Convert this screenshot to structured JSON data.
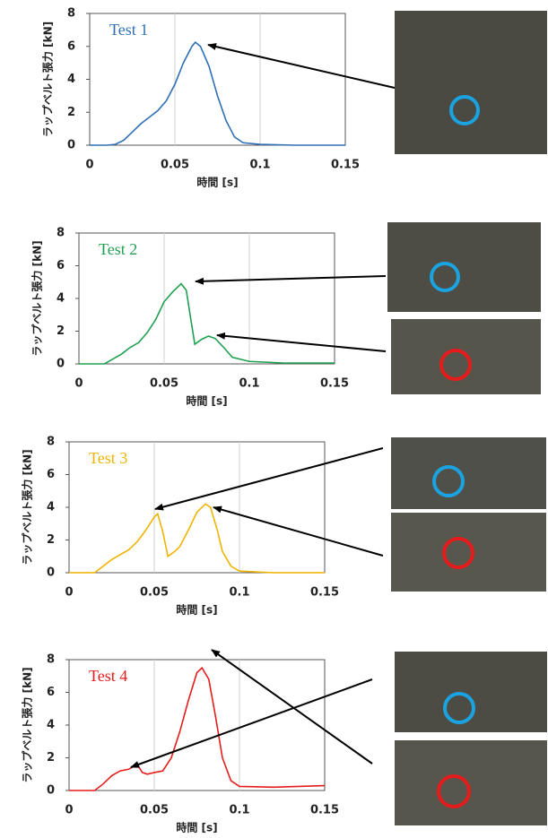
{
  "chart_data": [
    {
      "type": "line",
      "title": "Test 1",
      "xlabel": "時間 [s]",
      "ylabel": "ラップベルト張力 [kN]",
      "color": "#2f6fb5",
      "x": [
        0,
        0.01,
        0.015,
        0.02,
        0.025,
        0.03,
        0.035,
        0.04,
        0.045,
        0.05,
        0.055,
        0.06,
        0.062,
        0.065,
        0.07,
        0.075,
        0.08,
        0.085,
        0.09,
        0.1,
        0.12,
        0.15
      ],
      "values": [
        0,
        0,
        0.05,
        0.3,
        0.8,
        1.3,
        1.7,
        2.1,
        2.7,
        3.7,
        5.0,
        6.0,
        6.25,
        6.0,
        4.8,
        3.0,
        1.5,
        0.5,
        0.15,
        0.05,
        0,
        0
      ],
      "xlim": [
        0,
        0.15
      ],
      "ylim": [
        0,
        8
      ],
      "xticks": [
        0,
        0.05,
        0.1,
        0.15
      ],
      "yticks": [
        0,
        2,
        4,
        6,
        8
      ],
      "grid": true
    },
    {
      "type": "line",
      "title": "Test 2",
      "xlabel": "時間 [s]",
      "ylabel": "ラップベルト張力 [kN]",
      "color": "#1fa050",
      "x": [
        0,
        0.015,
        0.02,
        0.025,
        0.03,
        0.035,
        0.04,
        0.045,
        0.05,
        0.055,
        0.06,
        0.063,
        0.066,
        0.068,
        0.072,
        0.076,
        0.08,
        0.085,
        0.09,
        0.1,
        0.12,
        0.15
      ],
      "values": [
        0,
        0,
        0.3,
        0.6,
        1.0,
        1.3,
        1.9,
        2.7,
        3.8,
        4.4,
        4.9,
        4.5,
        2.5,
        1.2,
        1.5,
        1.7,
        1.55,
        1.0,
        0.4,
        0.15,
        0.05,
        0.05
      ],
      "xlim": [
        0,
        0.15
      ],
      "ylim": [
        0,
        8
      ],
      "xticks": [
        0,
        0.05,
        0.1,
        0.15
      ],
      "yticks": [
        0,
        2,
        4,
        6,
        8
      ],
      "grid": true
    },
    {
      "type": "line",
      "title": "Test 3",
      "xlabel": "時間 [s]",
      "ylabel": "ラップベルト張力 [kN]",
      "color": "#f0b400",
      "x": [
        0,
        0.015,
        0.02,
        0.025,
        0.03,
        0.035,
        0.04,
        0.045,
        0.05,
        0.052,
        0.055,
        0.058,
        0.062,
        0.065,
        0.07,
        0.075,
        0.08,
        0.083,
        0.087,
        0.09,
        0.095,
        0.1,
        0.12,
        0.15
      ],
      "values": [
        0,
        0,
        0.4,
        0.8,
        1.1,
        1.4,
        1.9,
        2.6,
        3.4,
        3.6,
        2.5,
        1.0,
        1.3,
        1.6,
        2.6,
        3.7,
        4.2,
        4.0,
        2.6,
        1.3,
        0.4,
        0.1,
        0,
        0
      ],
      "xlim": [
        0,
        0.15
      ],
      "ylim": [
        0,
        8
      ],
      "xticks": [
        0,
        0.05,
        0.1,
        0.15
      ],
      "yticks": [
        0,
        2,
        4,
        6,
        8
      ],
      "grid": true
    },
    {
      "type": "line",
      "title": "Test 4",
      "xlabel": "時間 [s]",
      "ylabel": "ラップベルト張力 [kN]",
      "color": "#e51c1c",
      "x": [
        0,
        0.015,
        0.02,
        0.025,
        0.03,
        0.035,
        0.04,
        0.043,
        0.046,
        0.05,
        0.055,
        0.06,
        0.065,
        0.07,
        0.075,
        0.078,
        0.082,
        0.086,
        0.09,
        0.095,
        0.1,
        0.12,
        0.15
      ],
      "values": [
        0,
        0,
        0.4,
        0.9,
        1.2,
        1.3,
        1.6,
        1.1,
        1.0,
        1.1,
        1.2,
        2.0,
        3.6,
        5.5,
        7.2,
        7.5,
        6.8,
        4.5,
        2.0,
        0.6,
        0.25,
        0.2,
        0.3
      ],
      "xlim": [
        0,
        0.15
      ],
      "ylim": [
        0,
        8
      ],
      "xticks": [
        0,
        0.05,
        0.1,
        0.15
      ],
      "yticks": [
        0,
        2,
        4,
        6,
        8
      ],
      "grid": true
    }
  ]
}
